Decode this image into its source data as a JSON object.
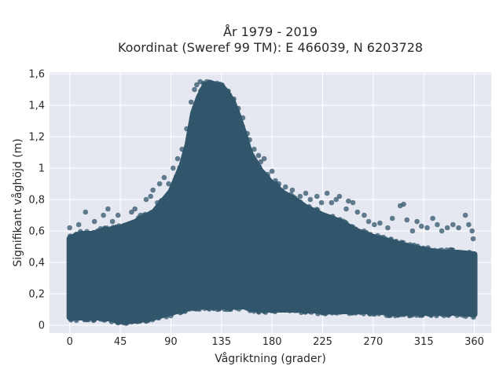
{
  "chart_data": {
    "type": "scatter",
    "title": "År 1979 - 2019",
    "subtitle": "Koordinat (Sweref 99 TM): E 466039, N 6203728",
    "xlabel": "Vågriktning (grader)",
    "ylabel": "Signifikant våghöjd (m)",
    "xlim": [
      -18,
      375
    ],
    "ylim": [
      -0.05,
      1.61
    ],
    "x_ticks": [
      0,
      45,
      90,
      135,
      180,
      225,
      270,
      315,
      360
    ],
    "x_tick_labels": [
      "0",
      "45",
      "90",
      "135",
      "180",
      "225",
      "270",
      "315",
      "360"
    ],
    "y_ticks": [
      0,
      0.2,
      0.4,
      0.6,
      0.8,
      1.0,
      1.2,
      1.4,
      1.6
    ],
    "y_tick_labels": [
      "0",
      "0,2",
      "0,4",
      "0,6",
      "0,8",
      "1",
      "1,2",
      "1,4",
      "1,6"
    ],
    "grid": true,
    "legend": "none",
    "series": [
      {
        "color": "#32566b",
        "opacity": 0.75,
        "envelope": {
          "x": [
            0,
            10,
            20,
            30,
            45,
            60,
            75,
            90,
            100,
            105,
            110,
            115,
            120,
            125,
            130,
            135,
            140,
            145,
            150,
            155,
            160,
            170,
            180,
            190,
            200,
            210,
            225,
            240,
            255,
            270,
            285,
            300,
            315,
            330,
            345,
            360
          ],
          "y_upper": [
            0.55,
            0.58,
            0.58,
            0.6,
            0.62,
            0.66,
            0.72,
            0.85,
            1.02,
            1.15,
            1.35,
            1.45,
            1.52,
            1.54,
            1.53,
            1.52,
            1.48,
            1.42,
            1.33,
            1.22,
            1.1,
            0.98,
            0.9,
            0.84,
            0.8,
            0.75,
            0.7,
            0.66,
            0.6,
            0.56,
            0.53,
            0.5,
            0.48,
            0.46,
            0.46,
            0.45
          ],
          "y_lower": [
            0.05,
            0.05,
            0.05,
            0.05,
            0.03,
            0.03,
            0.05,
            0.08,
            0.1,
            0.11,
            0.12,
            0.12,
            0.12,
            0.12,
            0.12,
            0.12,
            0.12,
            0.12,
            0.12,
            0.12,
            0.11,
            0.1,
            0.1,
            0.1,
            0.1,
            0.1,
            0.09,
            0.09,
            0.09,
            0.09,
            0.08,
            0.08,
            0.08,
            0.08,
            0.08,
            0.07
          ]
        },
        "points": [
          [
            0,
            0.62
          ],
          [
            8,
            0.64
          ],
          [
            14,
            0.72
          ],
          [
            22,
            0.66
          ],
          [
            30,
            0.7
          ],
          [
            34,
            0.74
          ],
          [
            38,
            0.66
          ],
          [
            43,
            0.7
          ],
          [
            48,
            0.62
          ],
          [
            55,
            0.72
          ],
          [
            58,
            0.74
          ],
          [
            63,
            0.7
          ],
          [
            68,
            0.8
          ],
          [
            72,
            0.82
          ],
          [
            74,
            0.86
          ],
          [
            78,
            0.78
          ],
          [
            80,
            0.9
          ],
          [
            84,
            0.94
          ],
          [
            88,
            0.9
          ],
          [
            92,
            1.0
          ],
          [
            96,
            1.06
          ],
          [
            100,
            1.12
          ],
          [
            104,
            1.25
          ],
          [
            108,
            1.42
          ],
          [
            111,
            1.5
          ],
          [
            113,
            1.53
          ],
          [
            116,
            1.55
          ],
          [
            119,
            1.54
          ],
          [
            122,
            1.55
          ],
          [
            127,
            1.52
          ],
          [
            131,
            1.54
          ],
          [
            135,
            1.51
          ],
          [
            138,
            1.5
          ],
          [
            141,
            1.49
          ],
          [
            146,
            1.44
          ],
          [
            150,
            1.38
          ],
          [
            154,
            1.32
          ],
          [
            158,
            1.22
          ],
          [
            160,
            1.18
          ],
          [
            164,
            1.12
          ],
          [
            168,
            1.08
          ],
          [
            170,
            1.04
          ],
          [
            173,
            1.06
          ],
          [
            176,
            0.96
          ],
          [
            180,
            0.98
          ],
          [
            183,
            0.92
          ],
          [
            186,
            0.9
          ],
          [
            192,
            0.88
          ],
          [
            198,
            0.86
          ],
          [
            205,
            0.82
          ],
          [
            210,
            0.84
          ],
          [
            214,
            0.8
          ],
          [
            220,
            0.82
          ],
          [
            224,
            0.78
          ],
          [
            229,
            0.84
          ],
          [
            233,
            0.78
          ],
          [
            237,
            0.8
          ],
          [
            240,
            0.82
          ],
          [
            246,
            0.74
          ],
          [
            248,
            0.79
          ],
          [
            252,
            0.78
          ],
          [
            256,
            0.72
          ],
          [
            262,
            0.7
          ],
          [
            266,
            0.66
          ],
          [
            271,
            0.64
          ],
          [
            276,
            0.65
          ],
          [
            283,
            0.62
          ],
          [
            287,
            0.68
          ],
          [
            294,
            0.76
          ],
          [
            297,
            0.77
          ],
          [
            300,
            0.67
          ],
          [
            305,
            0.6
          ],
          [
            309,
            0.66
          ],
          [
            313,
            0.63
          ],
          [
            318,
            0.62
          ],
          [
            323,
            0.68
          ],
          [
            327,
            0.64
          ],
          [
            331,
            0.6
          ],
          [
            336,
            0.62
          ],
          [
            341,
            0.64
          ],
          [
            346,
            0.62
          ],
          [
            352,
            0.7
          ],
          [
            355,
            0.64
          ],
          [
            358,
            0.6
          ],
          [
            359,
            0.55
          ],
          [
            2,
            0.56
          ],
          [
            6,
            0.58
          ],
          [
            12,
            0.55
          ],
          [
            25,
            0.6
          ],
          [
            50,
            0.6
          ],
          [
            40,
            0.04
          ],
          [
            55,
            0.02
          ],
          [
            70,
            0.03
          ],
          [
            60,
            0.04
          ],
          [
            35,
            0.04
          ],
          [
            90,
            0.06
          ]
        ]
      }
    ]
  }
}
